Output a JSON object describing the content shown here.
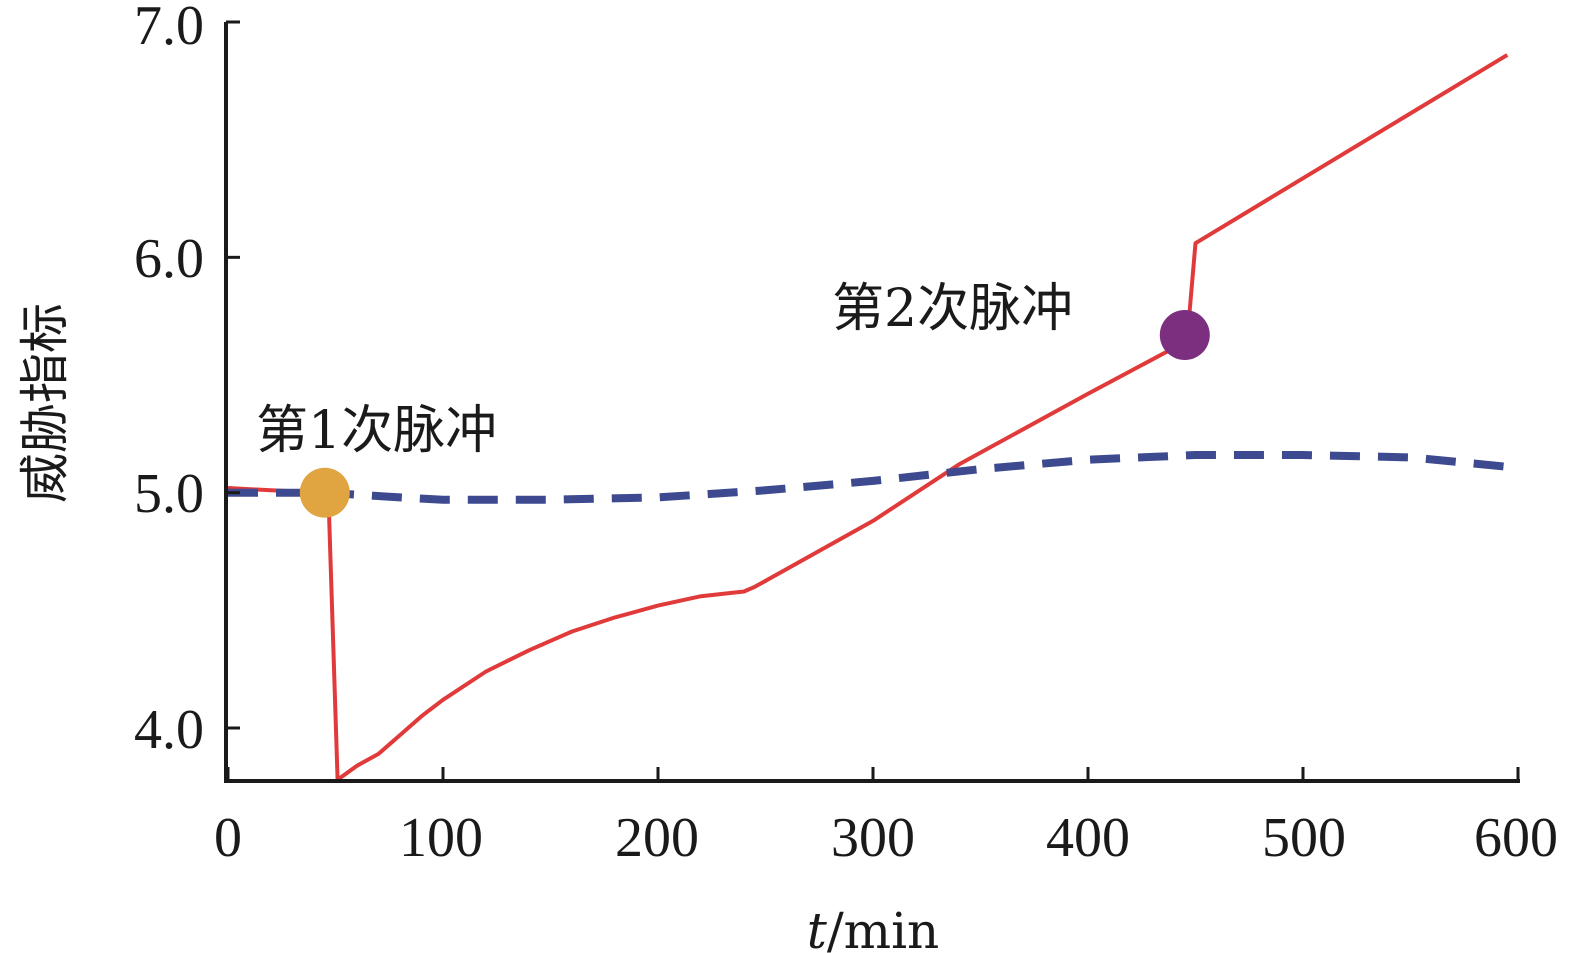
{
  "chart_data": {
    "type": "line",
    "xlabel_italic": "t",
    "xlabel_unit": "/min",
    "ylabel": "威胁指标",
    "xlim": [
      0,
      600
    ],
    "ylim": [
      3.78,
      7.0
    ],
    "x_ticks": [
      0,
      100,
      200,
      300,
      400,
      500,
      600
    ],
    "x_tick_labels": [
      "0",
      "100",
      "200",
      "300",
      "400",
      "500",
      "600"
    ],
    "y_ticks": [
      4.0,
      5.0,
      6.0,
      7.0
    ],
    "y_tick_labels": [
      "4.0",
      "5.0",
      "6.0",
      "7.0"
    ],
    "grid": false,
    "series": [
      {
        "style": "solid",
        "color": "#e03a3a",
        "points": [
          [
            0,
            5.02
          ],
          [
            20,
            5.01
          ],
          [
            45,
            5.0
          ],
          [
            47,
            4.9
          ],
          [
            51,
            3.78
          ],
          [
            60,
            3.84
          ],
          [
            70,
            3.89
          ],
          [
            80,
            3.97
          ],
          [
            90,
            4.05
          ],
          [
            100,
            4.12
          ],
          [
            120,
            4.24
          ],
          [
            140,
            4.33
          ],
          [
            160,
            4.41
          ],
          [
            180,
            4.47
          ],
          [
            200,
            4.52
          ],
          [
            220,
            4.56
          ],
          [
            240,
            4.58
          ],
          [
            245,
            4.6
          ],
          [
            300,
            4.88
          ],
          [
            340,
            5.12
          ],
          [
            400,
            5.42
          ],
          [
            445,
            5.64
          ],
          [
            447,
            5.74
          ],
          [
            450,
            6.06
          ],
          [
            595,
            6.86
          ]
        ]
      },
      {
        "style": "dashed",
        "color": "#3d4a8f",
        "points": [
          [
            0,
            5.0
          ],
          [
            45,
            5.0
          ],
          [
            80,
            4.98
          ],
          [
            100,
            4.97
          ],
          [
            150,
            4.97
          ],
          [
            200,
            4.98
          ],
          [
            250,
            5.01
          ],
          [
            300,
            5.05
          ],
          [
            350,
            5.1
          ],
          [
            400,
            5.14
          ],
          [
            450,
            5.16
          ],
          [
            500,
            5.16
          ],
          [
            550,
            5.15
          ],
          [
            595,
            5.11
          ]
        ]
      }
    ],
    "annotations": [
      {
        "label": "第1次脉冲",
        "x": 45,
        "y": 5.0,
        "marker_color": "#e0a440"
      },
      {
        "label": "第2次脉冲",
        "x": 445,
        "y": 5.67,
        "marker_color": "#7b2f7e"
      }
    ]
  }
}
